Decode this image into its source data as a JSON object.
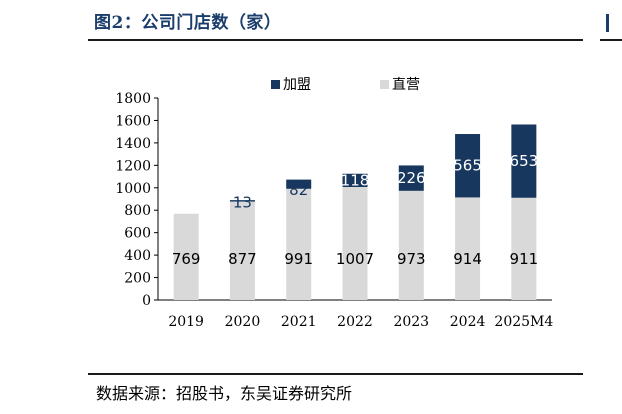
{
  "figure": {
    "title": "图2：公司门店数（家）",
    "source": "数据来源：招股书，东吴证券研究所"
  },
  "chart_data": {
    "type": "bar",
    "stacked": true,
    "title": "公司门店数（家）",
    "categories": [
      "2019",
      "2020",
      "2021",
      "2022",
      "2023",
      "2024",
      "2025M4"
    ],
    "series": [
      {
        "name": "直营",
        "values": [
          769,
          877,
          991,
          1007,
          973,
          914,
          911
        ],
        "color": "#d9d9d9",
        "label_color": "#000000"
      },
      {
        "name": "加盟",
        "values": [
          0,
          13,
          82,
          118,
          226,
          565,
          653
        ],
        "color": "#17375e",
        "label_color": "#ffffff"
      }
    ],
    "legend_order": [
      "加盟",
      "直营"
    ],
    "legend_position": "top",
    "ylim": [
      0,
      1800
    ],
    "yticks": [
      0,
      200,
      400,
      600,
      800,
      1000,
      1200,
      1400,
      1600,
      1800
    ],
    "xlabel": "",
    "ylabel": "",
    "grid": false
  }
}
